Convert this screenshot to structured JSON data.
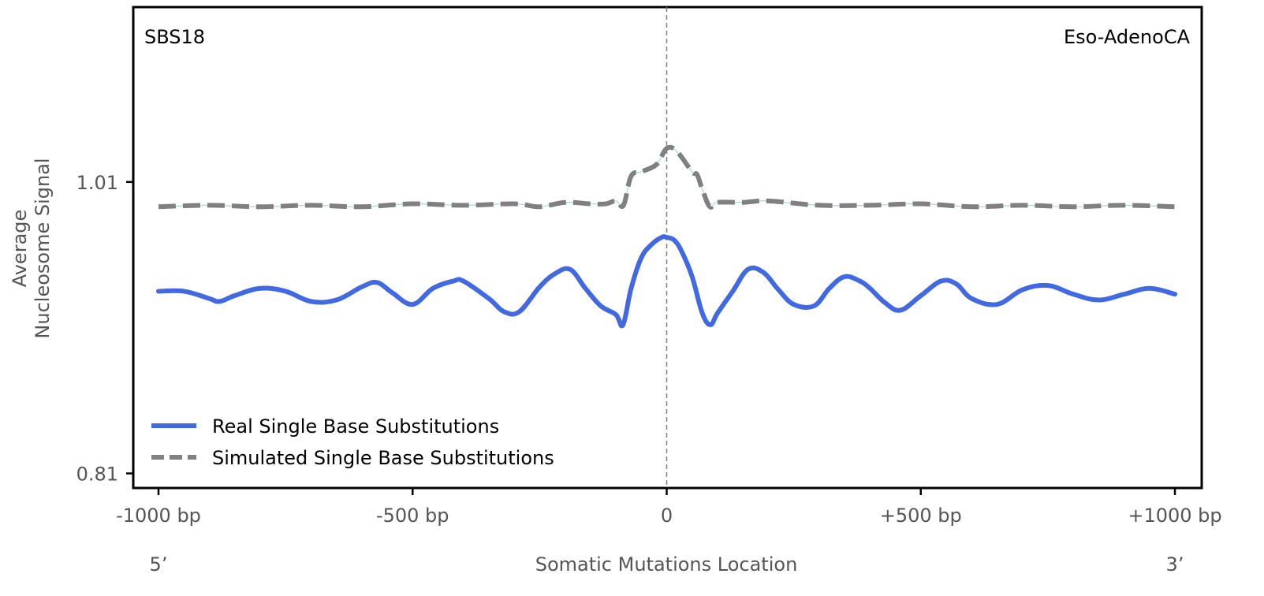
{
  "chart_data": {
    "type": "line",
    "signature_label": "SBS18",
    "cancer_type_label": "Eso-AdenoCA",
    "xlabel": "Somatic Mutations Location",
    "ylabel_line1": "Average",
    "ylabel_line2": "Nucleosome Signal",
    "xlim": [
      -1000,
      1000
    ],
    "ylim": [
      0.8,
      1.13
    ],
    "x_ticks": [
      {
        "value": -1000,
        "label": "-1000 bp"
      },
      {
        "value": -500,
        "label": "-500 bp"
      },
      {
        "value": 0,
        "label": "0"
      },
      {
        "value": 500,
        "label": "+500 bp"
      },
      {
        "value": 1000,
        "label": "+1000 bp"
      }
    ],
    "y_ticks": [
      {
        "value": 0.81,
        "label": "0.81"
      },
      {
        "value": 1.01,
        "label": "1.01"
      }
    ],
    "end_labels": {
      "left": "5’",
      "right": "3’"
    },
    "center_line": 0,
    "grid": false,
    "legend_position": "lower-left",
    "series": [
      {
        "name": "Real Single Base Substitutions",
        "color": "#4169E1",
        "style": "solid",
        "x": [
          -1000,
          -950,
          -900,
          -880,
          -850,
          -800,
          -750,
          -700,
          -650,
          -600,
          -570,
          -540,
          -500,
          -460,
          -420,
          -400,
          -350,
          -320,
          -290,
          -250,
          -220,
          -190,
          -160,
          -130,
          -100,
          -86,
          -70,
          -50,
          -30,
          -10,
          0,
          15,
          30,
          50,
          70,
          86,
          100,
          130,
          160,
          190,
          220,
          250,
          290,
          320,
          350,
          380,
          400,
          430,
          460,
          500,
          540,
          570,
          600,
          650,
          700,
          750,
          800,
          850,
          900,
          950,
          1000
        ],
        "values": [
          0.935,
          0.935,
          0.93,
          0.928,
          0.932,
          0.937,
          0.935,
          0.928,
          0.929,
          0.938,
          0.941,
          0.934,
          0.926,
          0.937,
          0.942,
          0.942,
          0.93,
          0.921,
          0.921,
          0.938,
          0.947,
          0.95,
          0.937,
          0.925,
          0.919,
          0.912,
          0.937,
          0.958,
          0.967,
          0.972,
          0.972,
          0.97,
          0.962,
          0.945,
          0.92,
          0.912,
          0.92,
          0.935,
          0.95,
          0.948,
          0.936,
          0.926,
          0.925,
          0.937,
          0.945,
          0.942,
          0.937,
          0.927,
          0.922,
          0.932,
          0.942,
          0.94,
          0.93,
          0.926,
          0.936,
          0.939,
          0.933,
          0.929,
          0.933,
          0.937,
          0.933
        ]
      },
      {
        "name": "Simulated Single Base Substitutions",
        "color": "#808080",
        "style": "dashed",
        "x": [
          -1000,
          -900,
          -800,
          -700,
          -600,
          -500,
          -400,
          -300,
          -250,
          -200,
          -150,
          -120,
          -100,
          -85,
          -70,
          -50,
          -20,
          0,
          20,
          50,
          60,
          70,
          85,
          100,
          150,
          200,
          300,
          400,
          500,
          600,
          700,
          800,
          900,
          1000
        ],
        "values": [
          0.993,
          0.994,
          0.993,
          0.994,
          0.993,
          0.995,
          0.994,
          0.995,
          0.993,
          0.996,
          0.995,
          0.995,
          0.997,
          0.994,
          1.014,
          1.017,
          1.022,
          1.033,
          1.031,
          1.017,
          1.015,
          1.005,
          0.993,
          0.996,
          0.996,
          0.997,
          0.994,
          0.994,
          0.995,
          0.993,
          0.994,
          0.993,
          0.994,
          0.993
        ]
      }
    ]
  }
}
